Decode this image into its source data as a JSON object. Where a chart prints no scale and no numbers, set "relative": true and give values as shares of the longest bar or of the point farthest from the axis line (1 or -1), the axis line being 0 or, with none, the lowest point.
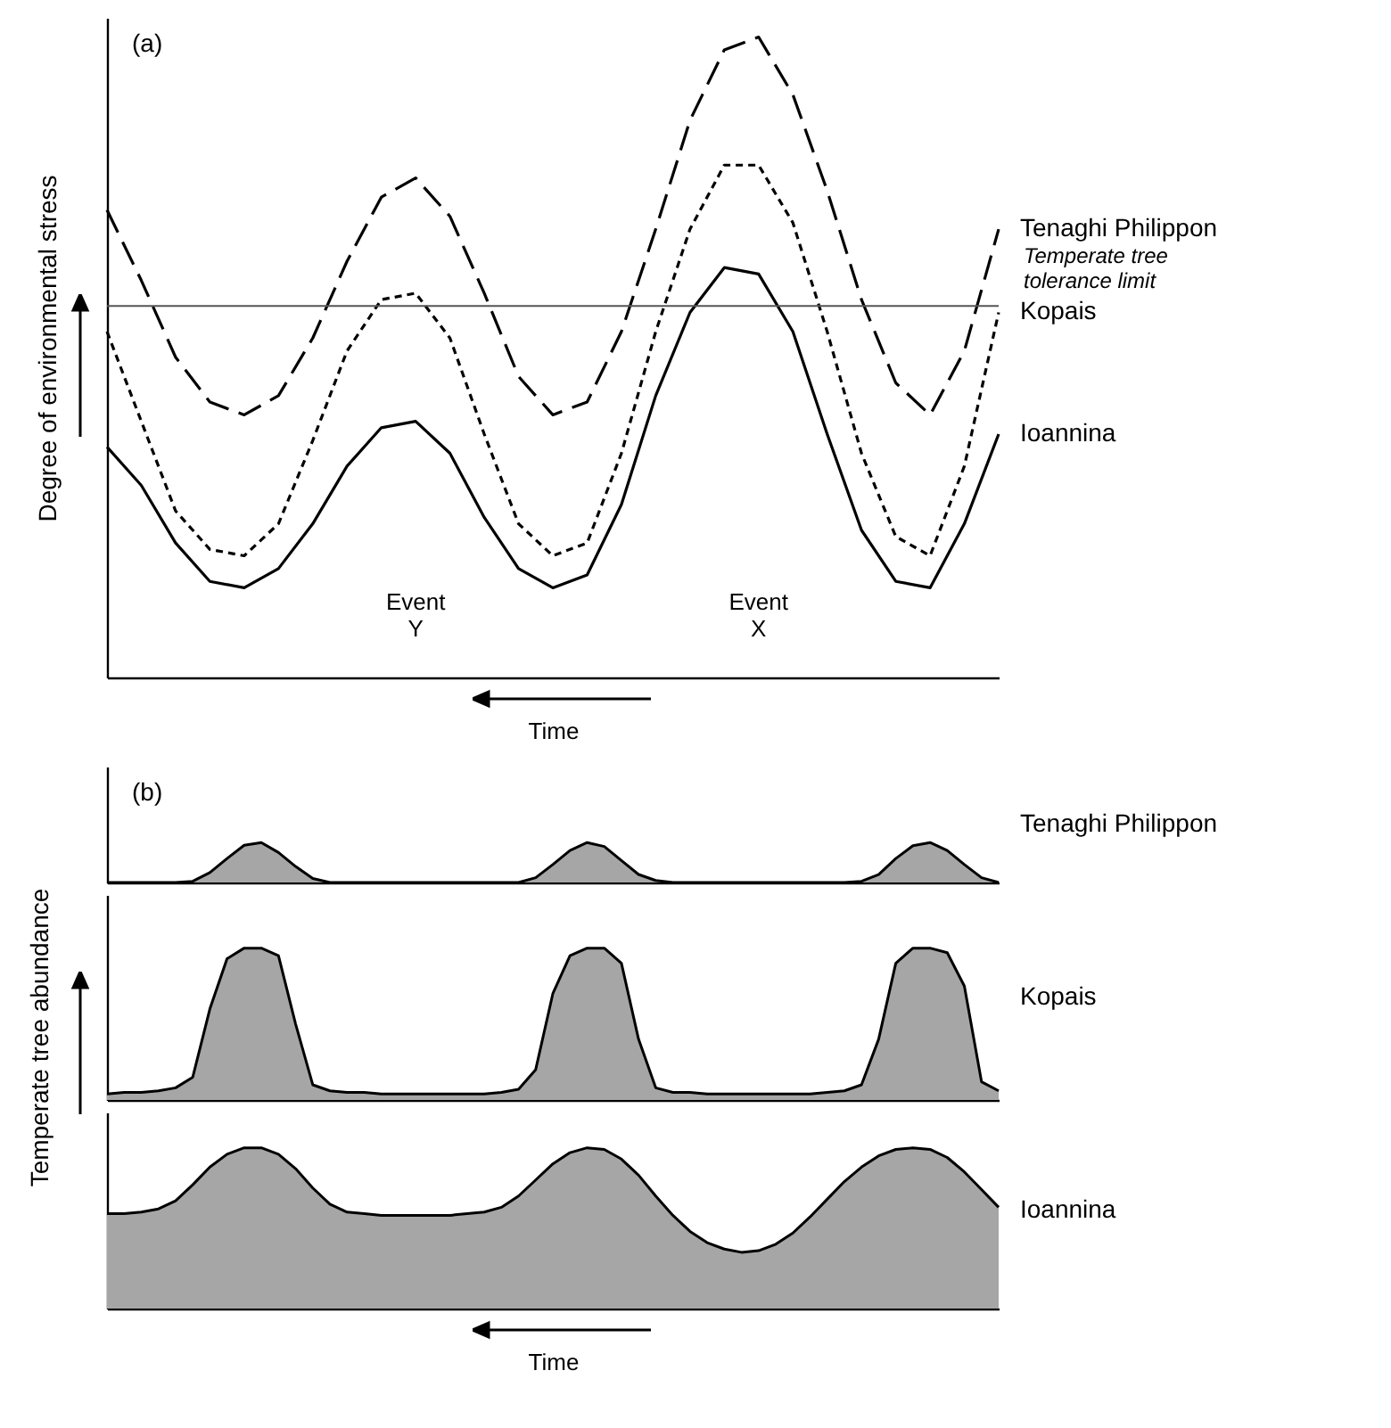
{
  "chart_data": [
    {
      "type": "line",
      "relative": true,
      "ylabel": "Degree of environmental stress",
      "xlabel": "Time",
      "annotations": [
        "(a)",
        "Event Y",
        "Event X"
      ],
      "categories": [
        null,
        null,
        null,
        null,
        null,
        null,
        null,
        null,
        null,
        null,
        null,
        null,
        null,
        null,
        null,
        null,
        null,
        null,
        null,
        null,
        null,
        null,
        null,
        null,
        null,
        null,
        null
      ],
      "ref_lines": [
        {
          "axis": "y",
          "value": 0.58,
          "label": "Temperate tree tolerance limit",
          "color": "#555555"
        }
      ],
      "series": [
        {
          "name": "Tenaghi Philippon",
          "color": "#000000",
          "line_style": "dashed",
          "values": [
            0.73,
            0.62,
            0.5,
            0.43,
            0.41,
            0.44,
            0.53,
            0.65,
            0.75,
            0.78,
            0.72,
            0.6,
            0.47,
            0.41,
            0.43,
            0.54,
            0.7,
            0.87,
            0.98,
            1,
            0.91,
            0.76,
            0.59,
            0.46,
            0.41,
            0.51,
            0.7
          ]
        },
        {
          "name": "Kopais",
          "color": "#000000",
          "line_style": "dotted",
          "values": [
            0.54,
            0.4,
            0.26,
            0.2,
            0.19,
            0.24,
            0.37,
            0.51,
            0.59,
            0.6,
            0.53,
            0.38,
            0.24,
            0.19,
            0.21,
            0.35,
            0.54,
            0.7,
            0.8,
            0.8,
            0.71,
            0.54,
            0.35,
            0.22,
            0.19,
            0.33,
            0.57
          ]
        },
        {
          "name": "Ioannina",
          "color": "#000000",
          "line_style": "solid",
          "values": [
            0.36,
            0.3,
            0.21,
            0.15,
            0.14,
            0.17,
            0.24,
            0.33,
            0.39,
            0.4,
            0.35,
            0.25,
            0.17,
            0.14,
            0.16,
            0.27,
            0.44,
            0.57,
            0.64,
            0.63,
            0.54,
            0.38,
            0.23,
            0.15,
            0.14,
            0.24,
            0.38
          ]
        }
      ]
    },
    {
      "type": "area",
      "relative": true,
      "annotations": [
        "(b)"
      ],
      "categories": [
        null,
        null,
        null,
        null,
        null,
        null,
        null,
        null,
        null,
        null,
        null,
        null,
        null,
        null,
        null,
        null,
        null,
        null,
        null,
        null,
        null,
        null,
        null,
        null,
        null,
        null,
        null,
        null,
        null,
        null,
        null,
        null,
        null,
        null,
        null,
        null,
        null,
        null,
        null,
        null,
        null,
        null,
        null,
        null,
        null,
        null,
        null,
        null,
        null,
        null,
        null,
        null,
        null
      ],
      "series": [
        {
          "name": "Tenaghi Philippon",
          "color": "#a6a6a6",
          "values": [
            0,
            0,
            0,
            0,
            0,
            0.03,
            0.25,
            0.6,
            0.93,
            1,
            0.75,
            0.4,
            0.1,
            0,
            0,
            0,
            0,
            0,
            0,
            0,
            0,
            0,
            0,
            0,
            0,
            0.12,
            0.45,
            0.8,
            1,
            0.9,
            0.55,
            0.2,
            0.05,
            0,
            0,
            0,
            0,
            0,
            0,
            0,
            0,
            0,
            0,
            0,
            0.03,
            0.2,
            0.6,
            0.92,
            1,
            0.8,
            0.45,
            0.12,
            0
          ]
        }
      ]
    },
    {
      "type": "area",
      "relative": true,
      "ylabel": "Temperate tree abundance",
      "categories": [
        null,
        null,
        null,
        null,
        null,
        null,
        null,
        null,
        null,
        null,
        null,
        null,
        null,
        null,
        null,
        null,
        null,
        null,
        null,
        null,
        null,
        null,
        null,
        null,
        null,
        null,
        null,
        null,
        null,
        null,
        null,
        null,
        null,
        null,
        null,
        null,
        null,
        null,
        null,
        null,
        null,
        null,
        null,
        null,
        null,
        null,
        null,
        null,
        null,
        null,
        null,
        null,
        null
      ],
      "series": [
        {
          "name": "Kopais",
          "color": "#a6a6a6",
          "values": [
            0.04,
            0.05,
            0.05,
            0.06,
            0.08,
            0.15,
            0.6,
            0.93,
            1,
            1,
            0.95,
            0.5,
            0.1,
            0.06,
            0.05,
            0.05,
            0.04,
            0.04,
            0.04,
            0.04,
            0.04,
            0.04,
            0.04,
            0.05,
            0.07,
            0.2,
            0.7,
            0.95,
            1,
            1,
            0.9,
            0.4,
            0.08,
            0.05,
            0.05,
            0.04,
            0.04,
            0.04,
            0.04,
            0.04,
            0.04,
            0.04,
            0.05,
            0.06,
            0.1,
            0.4,
            0.9,
            1,
            1,
            0.97,
            0.75,
            0.12,
            0.06
          ]
        }
      ]
    },
    {
      "type": "area",
      "relative": true,
      "xlabel": "Time",
      "categories": [
        null,
        null,
        null,
        null,
        null,
        null,
        null,
        null,
        null,
        null,
        null,
        null,
        null,
        null,
        null,
        null,
        null,
        null,
        null,
        null,
        null,
        null,
        null,
        null,
        null,
        null,
        null,
        null,
        null,
        null,
        null,
        null,
        null,
        null,
        null,
        null,
        null,
        null,
        null,
        null,
        null,
        null,
        null,
        null,
        null,
        null,
        null,
        null,
        null,
        null,
        null,
        null,
        null
      ],
      "series": [
        {
          "name": "Ioannina",
          "color": "#a6a6a6",
          "values": [
            0.59,
            0.59,
            0.6,
            0.62,
            0.67,
            0.77,
            0.88,
            0.96,
            1,
            1,
            0.96,
            0.87,
            0.75,
            0.65,
            0.6,
            0.59,
            0.58,
            0.58,
            0.58,
            0.58,
            0.58,
            0.59,
            0.6,
            0.63,
            0.7,
            0.8,
            0.9,
            0.97,
            1,
            0.99,
            0.93,
            0.83,
            0.7,
            0.58,
            0.48,
            0.41,
            0.37,
            0.35,
            0.36,
            0.4,
            0.47,
            0.57,
            0.68,
            0.79,
            0.88,
            0.95,
            0.99,
            1,
            0.99,
            0.94,
            0.85,
            0.74,
            0.63
          ]
        }
      ]
    }
  ]
}
